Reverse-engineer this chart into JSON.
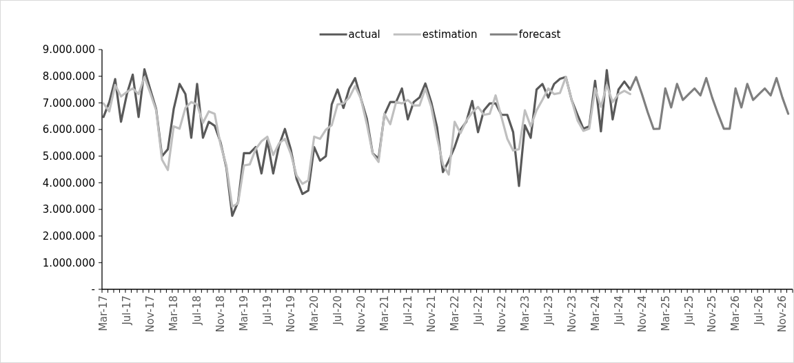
{
  "chart_data": {
    "type": "line",
    "categories": [
      "Mar-17",
      null,
      null,
      null,
      "Jul-17",
      null,
      null,
      null,
      "Nov-17",
      null,
      null,
      null,
      "Mar-18",
      null,
      null,
      null,
      "Jul-18",
      null,
      null,
      null,
      "Nov-18",
      null,
      null,
      null,
      "Mar-19",
      null,
      null,
      null,
      "Jul-19",
      null,
      null,
      null,
      "Nov-19",
      null,
      null,
      null,
      "Mar-20",
      null,
      null,
      null,
      "Jul-20",
      null,
      null,
      null,
      "Nov-20",
      null,
      null,
      null,
      "Mar-21",
      null,
      null,
      null,
      "Jul-21",
      null,
      null,
      null,
      "Nov-21",
      null,
      null,
      null,
      "Mar-22",
      null,
      null,
      null,
      "Jul-22",
      null,
      null,
      null,
      "Nov-22",
      null,
      null,
      null,
      "Mar-23",
      null,
      null,
      null,
      "Jul-23",
      null,
      null,
      null,
      "Nov-23",
      null,
      null,
      null,
      "Mar-24",
      null,
      null,
      null,
      "Jul-24",
      null,
      null,
      null,
      "Nov-24",
      null,
      null,
      null,
      "Mar-25",
      null,
      null,
      null,
      "Jul-25",
      null,
      null,
      null,
      "Nov-25",
      null,
      null,
      null,
      "Mar-26",
      null,
      null,
      null,
      "Jul-26",
      null,
      null,
      null,
      "Nov-26",
      null
    ],
    "series": [
      {
        "name": "actual",
        "color": "#595959",
        "values": [
          6470000,
          7030000,
          7890000,
          6290000,
          7330000,
          8060000,
          6470000,
          8260000,
          7500000,
          6770000,
          5000000,
          5260000,
          6770000,
          7710000,
          7330000,
          5690000,
          7710000,
          5690000,
          6290000,
          6140000,
          5520000,
          4570000,
          2760000,
          3280000,
          5110000,
          5110000,
          5340000,
          4350000,
          5590000,
          4350000,
          5400000,
          6020000,
          5260000,
          4140000,
          3580000,
          3710000,
          5340000,
          4830000,
          5000000,
          6940000,
          7500000,
          6810000,
          7540000,
          7930000,
          7150000,
          6400000,
          5100000,
          4910000,
          6550000,
          7030000,
          7030000,
          7540000,
          6380000,
          7030000,
          7200000,
          7730000,
          7030000,
          6080000,
          4400000,
          4830000,
          5340000,
          5990000,
          6290000,
          7070000,
          5900000,
          6720000,
          6980000,
          6980000,
          6550000,
          6550000,
          5900000,
          3880000,
          6160000,
          5690000,
          7500000,
          7710000,
          7200000,
          7710000,
          7900000,
          7970000,
          7100000,
          6550000,
          6030000,
          6120000,
          7830000,
          5930000,
          8230000,
          6380000,
          7500000,
          7800000,
          7500000,
          null,
          null,
          null,
          null,
          null,
          null,
          null,
          null,
          null,
          null,
          null,
          null,
          null,
          null,
          null,
          null,
          null,
          null,
          null,
          null,
          null,
          null,
          null,
          null,
          null,
          null,
          null
        ]
      },
      {
        "name": "estimation",
        "color": "#bfbfbf",
        "values": [
          6980000,
          6680000,
          7670000,
          7240000,
          7410000,
          7540000,
          7330000,
          7970000,
          7370000,
          6720000,
          4870000,
          4480000,
          6120000,
          6030000,
          6810000,
          7030000,
          6940000,
          6250000,
          6680000,
          6590000,
          5430000,
          4650000,
          3100000,
          3230000,
          4650000,
          4690000,
          5260000,
          5560000,
          5730000,
          5040000,
          5480000,
          5650000,
          5090000,
          4270000,
          3960000,
          4090000,
          5730000,
          5650000,
          5990000,
          6160000,
          6940000,
          6980000,
          7200000,
          7630000,
          7150000,
          6200000,
          5090000,
          4780000,
          6590000,
          6200000,
          7030000,
          6980000,
          7110000,
          6900000,
          6900000,
          7540000,
          6850000,
          5690000,
          4690000,
          4310000,
          6290000,
          5860000,
          6330000,
          6640000,
          6850000,
          6550000,
          6590000,
          7280000,
          6470000,
          5650000,
          5210000,
          5260000,
          6720000,
          6120000,
          6720000,
          7110000,
          7540000,
          7330000,
          7370000,
          7970000,
          7100000,
          6340000,
          5950000,
          6030000,
          7540000,
          6850000,
          7670000,
          7030000,
          7330000,
          7450000,
          7330000,
          null,
          null,
          null,
          null,
          null,
          null,
          null,
          null,
          null,
          null,
          null,
          null,
          null,
          null,
          null,
          null,
          null,
          null,
          null,
          null,
          null,
          null,
          null,
          null,
          null,
          null,
          null
        ]
      },
      {
        "name": "forecast",
        "color": "#7f7f7f",
        "values": [
          null,
          null,
          null,
          null,
          null,
          null,
          null,
          null,
          null,
          null,
          null,
          null,
          null,
          null,
          null,
          null,
          null,
          null,
          null,
          null,
          null,
          null,
          null,
          null,
          null,
          null,
          null,
          null,
          null,
          null,
          null,
          null,
          null,
          null,
          null,
          null,
          null,
          null,
          null,
          null,
          null,
          null,
          null,
          null,
          null,
          null,
          null,
          null,
          null,
          null,
          null,
          null,
          null,
          null,
          null,
          null,
          null,
          null,
          null,
          null,
          null,
          null,
          null,
          null,
          null,
          null,
          null,
          null,
          null,
          null,
          null,
          null,
          null,
          null,
          null,
          null,
          null,
          null,
          null,
          null,
          null,
          null,
          null,
          null,
          null,
          null,
          null,
          null,
          null,
          null,
          7500000,
          7970000,
          7330000,
          6640000,
          6020000,
          6030000,
          7540000,
          6830000,
          7710000,
          7110000,
          7330000,
          7540000,
          7280000,
          7930000,
          7200000,
          6590000,
          6030000,
          6030000,
          7540000,
          6830000,
          7710000,
          7110000,
          7330000,
          7540000,
          7280000,
          7930000,
          7200000,
          6590000
        ]
      }
    ],
    "ylim": [
      0,
      9000000
    ],
    "yticks": [
      {
        "value": 0,
        "label": "-"
      },
      {
        "value": 1000000,
        "label": "1.000.000"
      },
      {
        "value": 2000000,
        "label": "2.000.000"
      },
      {
        "value": 3000000,
        "label": "3.000.000"
      },
      {
        "value": 4000000,
        "label": "4.000.000"
      },
      {
        "value": 5000000,
        "label": "5.000.000"
      },
      {
        "value": 6000000,
        "label": "6.000.000"
      },
      {
        "value": 7000000,
        "label": "7.000.000"
      },
      {
        "value": 8000000,
        "label": "8.000.000"
      },
      {
        "value": 9000000,
        "label": "9.000.000"
      }
    ],
    "legend": "top",
    "grid": false
  }
}
